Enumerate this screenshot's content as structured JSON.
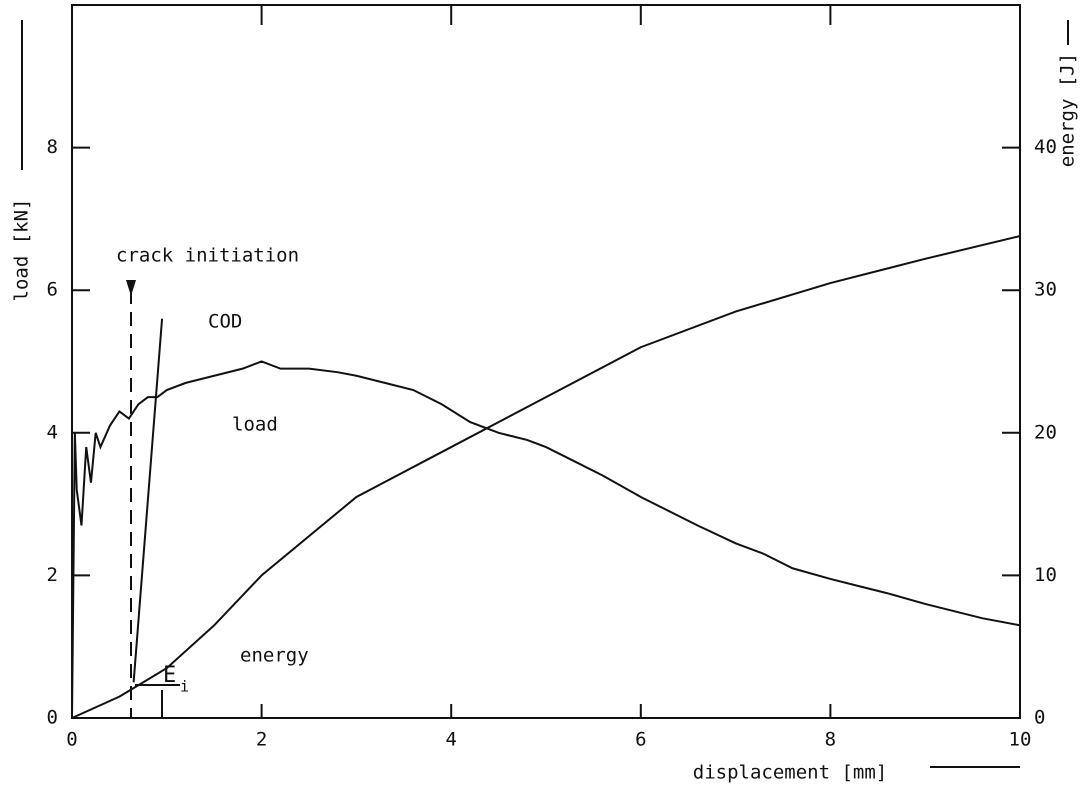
{
  "chart_data": {
    "type": "line",
    "xlabel": "displacement [mm]",
    "ylabel": "load [kN]",
    "y2label": "energy [J]",
    "xlim": [
      0,
      10
    ],
    "xticks": [
      0,
      2,
      4,
      6,
      8,
      10
    ],
    "ylim": [
      0,
      10
    ],
    "yticks": [
      0,
      2,
      4,
      6,
      8
    ],
    "y2lim": [
      0,
      50
    ],
    "y2ticks": [
      0,
      10,
      20,
      30,
      40
    ],
    "series": [
      {
        "name": "load",
        "color": "#111111",
        "axis": "y",
        "x": [
          0,
          0.03,
          0.05,
          0.1,
          0.15,
          0.2,
          0.25,
          0.3,
          0.4,
          0.5,
          0.6,
          0.7,
          0.8,
          0.9,
          1.0,
          1.2,
          1.5,
          1.8,
          2.0,
          2.2,
          2.5,
          2.8,
          3.0,
          3.3,
          3.6,
          3.9,
          4.2,
          4.5,
          4.8,
          5.0,
          5.3,
          5.6,
          6.0,
          6.3,
          6.6,
          7.0,
          7.3,
          7.6,
          8.0,
          8.3,
          8.6,
          9.0,
          9.3,
          9.6,
          10.0
        ],
        "values": [
          0,
          4.0,
          3.2,
          2.7,
          3.8,
          3.3,
          4.0,
          3.8,
          4.1,
          4.3,
          4.2,
          4.4,
          4.5,
          4.5,
          4.6,
          4.7,
          4.8,
          4.9,
          5.0,
          4.9,
          4.9,
          4.85,
          4.8,
          4.7,
          4.6,
          4.4,
          4.15,
          4.0,
          3.9,
          3.8,
          3.6,
          3.4,
          3.1,
          2.9,
          2.7,
          2.45,
          2.3,
          2.1,
          1.95,
          1.85,
          1.75,
          1.6,
          1.5,
          1.4,
          1.3
        ]
      },
      {
        "name": "energy",
        "color": "#111111",
        "axis": "y2",
        "x": [
          0,
          0.5,
          1,
          1.5,
          2,
          3,
          4,
          5,
          6,
          7,
          8,
          9,
          10
        ],
        "values": [
          0,
          1.5,
          3.5,
          6.5,
          10,
          15.5,
          19,
          22.5,
          26,
          28.5,
          30.5,
          32.2,
          33.8
        ]
      },
      {
        "name": "COD",
        "color": "#111111",
        "axis": "y",
        "x": [
          0.65,
          0.95
        ],
        "values": [
          0.5,
          5.6
        ]
      }
    ],
    "annotations": {
      "crack_initiation": "crack initiation",
      "ei": {
        "text": "E",
        "subscript": "i"
      }
    }
  }
}
